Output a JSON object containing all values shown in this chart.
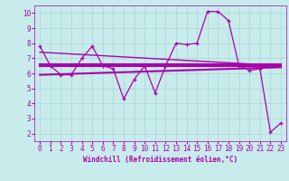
{
  "xlabel": "Windchill (Refroidissement éolien,°C)",
  "background_color": "#c8ecec",
  "grid_color": "#b0d8d8",
  "line_color": "#aa00aa",
  "xlim": [
    -0.5,
    23.5
  ],
  "ylim": [
    1.5,
    10.5
  ],
  "yticks": [
    2,
    3,
    4,
    5,
    6,
    7,
    8,
    9,
    10
  ],
  "xticks": [
    0,
    1,
    2,
    3,
    4,
    5,
    6,
    7,
    8,
    9,
    10,
    11,
    12,
    13,
    14,
    15,
    16,
    17,
    18,
    19,
    20,
    21,
    22,
    23
  ],
  "series1_x": [
    0,
    1,
    2,
    3,
    4,
    5,
    6,
    7,
    8,
    9,
    10,
    11,
    12,
    13,
    14,
    15,
    16,
    17,
    18,
    19,
    20,
    21,
    22,
    23
  ],
  "series1_y": [
    7.8,
    6.5,
    5.9,
    5.9,
    7.0,
    7.8,
    6.5,
    6.3,
    4.3,
    5.6,
    6.5,
    4.7,
    6.5,
    8.0,
    7.9,
    8.0,
    10.1,
    10.1,
    9.5,
    6.5,
    6.2,
    6.3,
    2.1,
    2.7
  ],
  "series2_x": [
    0,
    23
  ],
  "series2_y": [
    6.6,
    6.6
  ],
  "series3_x": [
    0,
    23
  ],
  "series3_y": [
    6.5,
    6.5
  ],
  "series4_x": [
    0,
    23
  ],
  "series4_y": [
    5.9,
    6.4
  ],
  "series5_x": [
    0,
    23
  ],
  "series5_y": [
    7.4,
    6.5
  ]
}
